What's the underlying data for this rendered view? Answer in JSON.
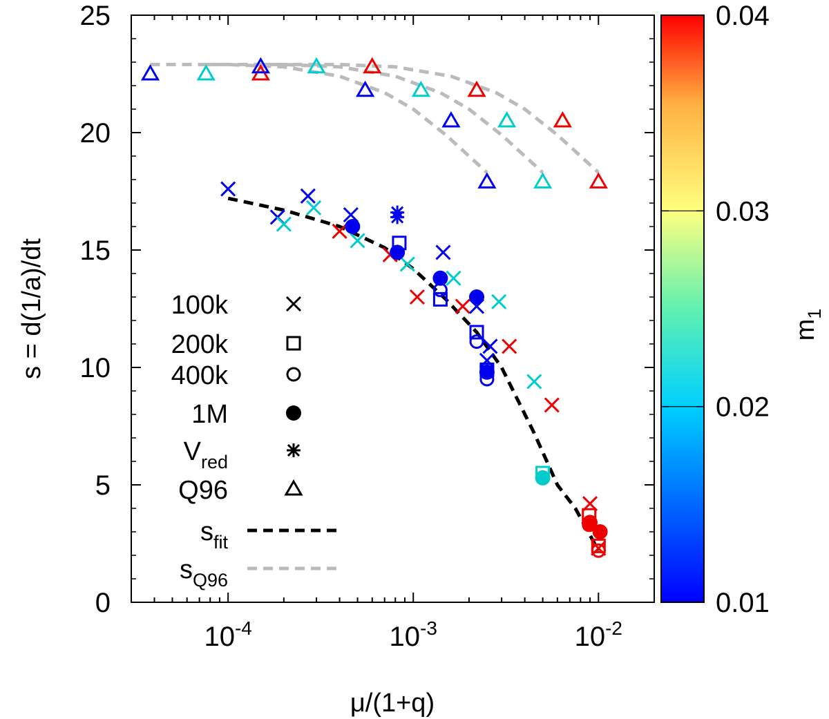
{
  "chart_data": {
    "type": "scatter",
    "xlabel": "μ/(1+q)",
    "ylabel": "s = d(1/a)/dt",
    "xscale": "log",
    "xlim": [
      3e-05,
      0.02
    ],
    "ylim": [
      0,
      25
    ],
    "x_ticks": [
      {
        "value": 0.0001,
        "base": "10",
        "exp": "-4"
      },
      {
        "value": 0.001,
        "base": "10",
        "exp": "-3"
      },
      {
        "value": 0.01,
        "base": "10",
        "exp": "-2"
      }
    ],
    "y_ticks": [
      0,
      5,
      10,
      15,
      20,
      25
    ],
    "y_tick_labels": [
      "0",
      "5",
      "10",
      "15",
      "20",
      "25"
    ],
    "colorbar": {
      "label_main": "m",
      "label_sub": "1",
      "range": [
        0.01,
        0.04
      ],
      "ticks": [
        0.01,
        0.02,
        0.03,
        0.04
      ],
      "tick_labels": [
        "0.01",
        "0.02",
        "0.03",
        "0.04"
      ],
      "stops": [
        "#0000ff",
        "#00d0ff",
        "#60f0b0",
        "#ffff80",
        "#ffb040",
        "#ff0000"
      ]
    },
    "colors": {
      "m_0.01": "#0000ee",
      "m_0.02": "#00cccc",
      "m_0.04": "#ee0000",
      "fit": "#000000",
      "q96": "#bbbbbb"
    },
    "legend": {
      "position": "center-left",
      "entries": [
        {
          "label": "100k",
          "marker": "x"
        },
        {
          "label": "200k",
          "marker": "square"
        },
        {
          "label": "400k",
          "marker": "circle"
        },
        {
          "label": "1M",
          "marker": "filled-circle"
        },
        {
          "label": "V",
          "sub": "red",
          "marker": "star"
        },
        {
          "label": "Q96",
          "marker": "triangle"
        },
        {
          "label": "s",
          "sub": "fit",
          "marker": "dashed-black"
        },
        {
          "label": "s",
          "sub": "Q96",
          "marker": "dashed-gray"
        }
      ]
    },
    "series": [
      {
        "name": "100k",
        "marker": "x",
        "points": [
          {
            "x": 0.0001,
            "y": 17.6,
            "m": 0.01
          },
          {
            "x": 0.000185,
            "y": 16.4,
            "m": 0.01
          },
          {
            "x": 0.0002,
            "y": 16.1,
            "m": 0.02
          },
          {
            "x": 0.00027,
            "y": 17.3,
            "m": 0.01
          },
          {
            "x": 0.00029,
            "y": 16.8,
            "m": 0.02
          },
          {
            "x": 0.0004,
            "y": 15.8,
            "m": 0.04
          },
          {
            "x": 0.00046,
            "y": 16.5,
            "m": 0.01
          },
          {
            "x": 0.0005,
            "y": 15.4,
            "m": 0.02
          },
          {
            "x": 0.00075,
            "y": 14.8,
            "m": 0.04
          },
          {
            "x": 0.00093,
            "y": 14.4,
            "m": 0.02
          },
          {
            "x": 0.00105,
            "y": 13.0,
            "m": 0.04
          },
          {
            "x": 0.00145,
            "y": 14.9,
            "m": 0.01
          },
          {
            "x": 0.00165,
            "y": 13.8,
            "m": 0.02
          },
          {
            "x": 0.00185,
            "y": 12.6,
            "m": 0.04
          },
          {
            "x": 0.0022,
            "y": 12.6,
            "m": 0.01
          },
          {
            "x": 0.0026,
            "y": 10.9,
            "m": 0.01
          },
          {
            "x": 0.0025,
            "y": 10.3,
            "m": 0.01
          },
          {
            "x": 0.0029,
            "y": 12.8,
            "m": 0.02
          },
          {
            "x": 0.0033,
            "y": 10.9,
            "m": 0.04
          },
          {
            "x": 0.0045,
            "y": 9.4,
            "m": 0.02
          },
          {
            "x": 0.0056,
            "y": 8.4,
            "m": 0.04
          },
          {
            "x": 0.009,
            "y": 4.2,
            "m": 0.04
          },
          {
            "x": 0.01,
            "y": 2.3,
            "m": 0.04
          }
        ]
      },
      {
        "name": "200k",
        "marker": "square",
        "points": [
          {
            "x": 0.00084,
            "y": 15.3,
            "m": 0.01
          },
          {
            "x": 0.0014,
            "y": 12.9,
            "m": 0.01
          },
          {
            "x": 0.0022,
            "y": 11.5,
            "m": 0.01
          },
          {
            "x": 0.0025,
            "y": 9.9,
            "m": 0.01
          },
          {
            "x": 0.005,
            "y": 5.5,
            "m": 0.02
          },
          {
            "x": 0.0089,
            "y": 3.7,
            "m": 0.04
          },
          {
            "x": 0.01,
            "y": 2.4,
            "m": 0.04
          }
        ]
      },
      {
        "name": "400k",
        "marker": "circle",
        "points": [
          {
            "x": 0.0014,
            "y": 13.3,
            "m": 0.01
          },
          {
            "x": 0.0022,
            "y": 11.1,
            "m": 0.01
          },
          {
            "x": 0.0025,
            "y": 9.5,
            "m": 0.01
          },
          {
            "x": 0.005,
            "y": 5.3,
            "m": 0.02
          },
          {
            "x": 0.0089,
            "y": 3.3,
            "m": 0.04
          },
          {
            "x": 0.01,
            "y": 2.2,
            "m": 0.04
          }
        ]
      },
      {
        "name": "1M",
        "marker": "filled-circle",
        "points": [
          {
            "x": 0.00047,
            "y": 16.0,
            "m": 0.01
          },
          {
            "x": 0.00082,
            "y": 14.9,
            "m": 0.01
          },
          {
            "x": 0.0014,
            "y": 13.8,
            "m": 0.01
          },
          {
            "x": 0.0022,
            "y": 13.0,
            "m": 0.01
          },
          {
            "x": 0.0025,
            "y": 9.8,
            "m": 0.01
          },
          {
            "x": 0.005,
            "y": 5.3,
            "m": 0.02
          },
          {
            "x": 0.009,
            "y": 3.4,
            "m": 0.04
          },
          {
            "x": 0.0102,
            "y": 3.0,
            "m": 0.04
          }
        ]
      },
      {
        "name": "V_red",
        "marker": "star",
        "points": [
          {
            "x": 0.00082,
            "y": 16.6,
            "m": 0.01
          },
          {
            "x": 0.00082,
            "y": 16.4,
            "m": 0.01
          }
        ]
      },
      {
        "name": "Q96",
        "marker": "triangle",
        "points": [
          {
            "x": 3.8e-05,
            "y": 22.5,
            "m": 0.01
          },
          {
            "x": 7.6e-05,
            "y": 22.5,
            "m": 0.02
          },
          {
            "x": 0.00015,
            "y": 22.5,
            "m": 0.04
          },
          {
            "x": 0.00015,
            "y": 22.8,
            "m": 0.01
          },
          {
            "x": 0.0003,
            "y": 22.8,
            "m": 0.02
          },
          {
            "x": 0.0006,
            "y": 22.8,
            "m": 0.04
          },
          {
            "x": 0.00055,
            "y": 21.8,
            "m": 0.01
          },
          {
            "x": 0.0011,
            "y": 21.8,
            "m": 0.02
          },
          {
            "x": 0.0022,
            "y": 21.8,
            "m": 0.04
          },
          {
            "x": 0.0016,
            "y": 20.5,
            "m": 0.01
          },
          {
            "x": 0.0032,
            "y": 20.5,
            "m": 0.02
          },
          {
            "x": 0.0064,
            "y": 20.5,
            "m": 0.04
          },
          {
            "x": 0.0025,
            "y": 17.9,
            "m": 0.01
          },
          {
            "x": 0.005,
            "y": 17.9,
            "m": 0.02
          },
          {
            "x": 0.01,
            "y": 17.9,
            "m": 0.04
          }
        ]
      }
    ],
    "lines": [
      {
        "name": "s_fit",
        "style": "dashed-black",
        "points": [
          {
            "x": 0.0001,
            "y": 17.2
          },
          {
            "x": 0.0002,
            "y": 16.7
          },
          {
            "x": 0.0004,
            "y": 16.0
          },
          {
            "x": 0.0007,
            "y": 15.1
          },
          {
            "x": 0.001,
            "y": 14.2
          },
          {
            "x": 0.0015,
            "y": 12.9
          },
          {
            "x": 0.0022,
            "y": 11.5
          },
          {
            "x": 0.003,
            "y": 10.0
          },
          {
            "x": 0.0045,
            "y": 7.2
          },
          {
            "x": 0.006,
            "y": 5.0
          },
          {
            "x": 0.0075,
            "y": 4.0
          },
          {
            "x": 0.01,
            "y": 2.2
          }
        ]
      },
      {
        "name": "s_Q96 m=0.01",
        "style": "dashed-gray",
        "points": [
          {
            "x": 3.8e-05,
            "y": 22.9
          },
          {
            "x": 0.0001,
            "y": 22.9
          },
          {
            "x": 0.0002,
            "y": 22.8
          },
          {
            "x": 0.0004,
            "y": 22.4
          },
          {
            "x": 0.0007,
            "y": 21.7
          },
          {
            "x": 0.001,
            "y": 21.0
          },
          {
            "x": 0.0015,
            "y": 19.9
          },
          {
            "x": 0.002,
            "y": 19.0
          },
          {
            "x": 0.0025,
            "y": 18.3
          }
        ]
      },
      {
        "name": "s_Q96 m=0.02",
        "style": "dashed-gray",
        "points": [
          {
            "x": 7.6e-05,
            "y": 22.9
          },
          {
            "x": 0.0002,
            "y": 22.9
          },
          {
            "x": 0.0004,
            "y": 22.8
          },
          {
            "x": 0.0008,
            "y": 22.4
          },
          {
            "x": 0.0014,
            "y": 21.7
          },
          {
            "x": 0.002,
            "y": 21.0
          },
          {
            "x": 0.003,
            "y": 19.9
          },
          {
            "x": 0.004,
            "y": 19.0
          },
          {
            "x": 0.005,
            "y": 18.3
          }
        ]
      },
      {
        "name": "s_Q96 m=0.04",
        "style": "dashed-gray",
        "points": [
          {
            "x": 0.00015,
            "y": 22.9
          },
          {
            "x": 0.0004,
            "y": 22.9
          },
          {
            "x": 0.0008,
            "y": 22.8
          },
          {
            "x": 0.0016,
            "y": 22.4
          },
          {
            "x": 0.0028,
            "y": 21.7
          },
          {
            "x": 0.004,
            "y": 21.0
          },
          {
            "x": 0.006,
            "y": 19.9
          },
          {
            "x": 0.008,
            "y": 19.0
          },
          {
            "x": 0.01,
            "y": 18.3
          }
        ]
      }
    ]
  }
}
